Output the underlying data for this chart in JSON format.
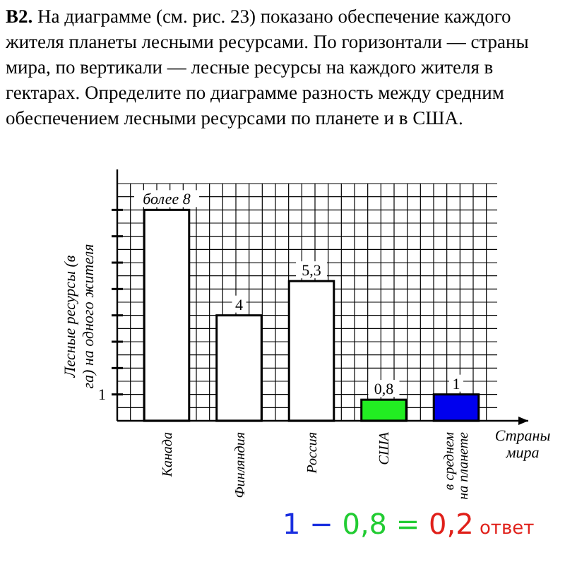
{
  "chart_data": {
    "type": "bar",
    "title": "B2. На диаграмме (см. рис. 23) показано обеспечение каждого жителя планеты лесными ресурсами. По горизонтали — страны мира, по вертикали — лесные ресурсы на каждого жителя в гектарах. Определите по диаграмме разность между средним обеспечением лесными ресурсами по планете и в США.",
    "xlabel": "Страны мира",
    "ylabel": "Лесные ресурсы (в га) на одного жителя",
    "categories": [
      "Канада",
      "Финляндия",
      "Россия",
      "США",
      "в среднем на планете"
    ],
    "values": [
      8,
      4,
      5.3,
      0.8,
      1
    ],
    "value_labels": [
      "более 8",
      "4",
      "5,3",
      "0,8",
      "1"
    ],
    "colors": [
      "#ffffff",
      "#ffffff",
      "#ffffff",
      "#22ee22",
      "#0000ee"
    ],
    "ylim": [
      0,
      9
    ],
    "yticks": [
      {
        "value": 1,
        "label": "1"
      },
      {
        "value": 2,
        "label": null
      },
      {
        "value": 3,
        "label": null
      },
      {
        "value": 4,
        "label": null
      },
      {
        "value": 5,
        "label": null
      },
      {
        "value": 6,
        "label": null
      },
      {
        "value": 7,
        "label": null
      },
      {
        "value": 8,
        "label": null
      }
    ],
    "grid": true,
    "annotations": [
      "1 − 0,8 = 0,2 ответ"
    ]
  }
}
